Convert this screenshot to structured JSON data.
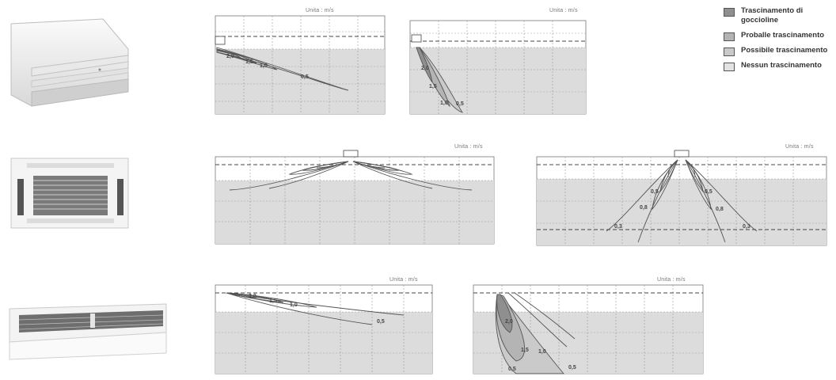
{
  "colors": {
    "occupied_zone": "#dcdcdc",
    "strong": "#8f8f8f",
    "probable": "#b4b4b4",
    "possible": "#cacaca",
    "none": "#e3e3e3",
    "contour": "#555555",
    "grid": "#9a9a9a"
  },
  "legend": {
    "items": [
      {
        "label": "Trascinamento di goccioline",
        "color": "#8f8f8f"
      },
      {
        "label": "Proballe trascinamento",
        "color": "#b4b4b4"
      },
      {
        "label": "Possibile trascinamento",
        "color": "#cacaca"
      },
      {
        "label": "Nessun trascinamento",
        "color": "#e3e3e3"
      }
    ]
  },
  "units": [
    {
      "type": "wall-mounted-unit",
      "icon": "wall-split-ac-icon"
    },
    {
      "type": "cassette-unit",
      "icon": "ceiling-cassette-ac-icon"
    },
    {
      "type": "ceiling-floor-unit",
      "icon": "ceiling-suspended-ac-icon"
    }
  ],
  "charts": {
    "wall_horizontal": {
      "unit_label": "Unita : m/s",
      "contours": [
        "2,0",
        "1,5",
        "1,0",
        "0,5"
      ]
    },
    "wall_vertical": {
      "unit_label": "Unita : m/s",
      "contours": [
        "2,0",
        "1,5",
        "1,0",
        "0,5"
      ]
    },
    "cassette_horizontal": {
      "unit_label": "Unita : m/s",
      "contours": []
    },
    "cassette_vertical": {
      "unit_label": "Unita : m/s",
      "contours": [
        "0,5",
        "0,5",
        "0,8",
        "0,8",
        "0,3",
        "0,3"
      ]
    },
    "ceiling_horizontal": {
      "unit_label": "Unita : m/s",
      "contours": [
        "2,0",
        "1,5",
        "1,0",
        "0,5"
      ]
    },
    "ceiling_vertical": {
      "unit_label": "Unita : m/s",
      "contours": [
        "2,0",
        "1,5",
        "1,0",
        "0,5",
        "0,5"
      ]
    }
  }
}
